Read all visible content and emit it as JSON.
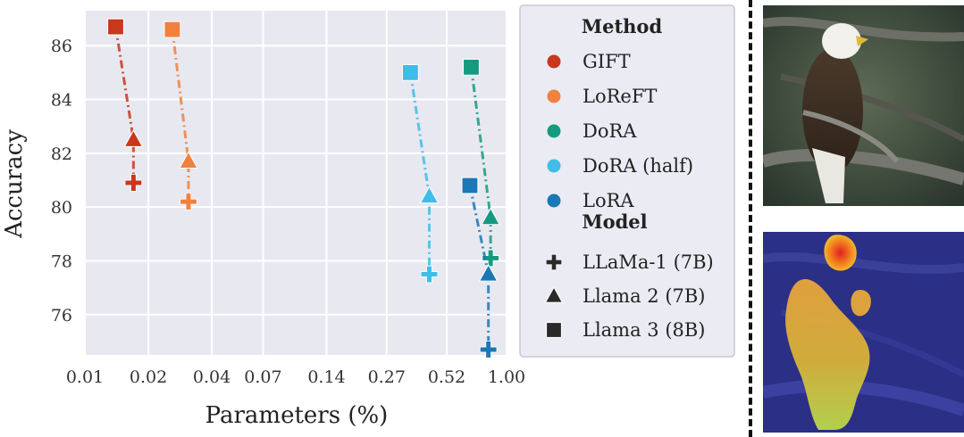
{
  "chart_data": {
    "type": "scatter",
    "xlabel": "Parameters (%)",
    "ylabel": "Accuracy",
    "x_scale": "log",
    "xlim": [
      0.01,
      1.0
    ],
    "ylim": [
      74.5,
      87.3
    ],
    "x_ticks": [
      "0.01",
      "0.02",
      "0.04",
      "0.07",
      "0.14",
      "0.27",
      "0.52",
      "1.00"
    ],
    "y_ticks": [
      "76",
      "78",
      "80",
      "82",
      "84",
      "86"
    ],
    "grid": true,
    "legend_position": "right",
    "legend": {
      "method_title": "Method",
      "model_title": "Model",
      "methods": [
        {
          "name": "GIFT",
          "color": "#c8381c"
        },
        {
          "name": "LoReFT",
          "color": "#f0813e"
        },
        {
          "name": "DoRA",
          "color": "#169a7f"
        },
        {
          "name": "DoRA (half)",
          "color": "#3fbce8"
        },
        {
          "name": "LoRA",
          "color": "#1a78b4"
        }
      ],
      "models": [
        {
          "name": "LLaMa-1 (7B)",
          "marker": "plus"
        },
        {
          "name": "Llama 2 (7B)",
          "marker": "triangle"
        },
        {
          "name": "Llama 3 (8B)",
          "marker": "square"
        }
      ]
    },
    "series": [
      {
        "method": "GIFT",
        "color": "#c8381c",
        "points": [
          {
            "model": "Llama 3 (8B)",
            "x": 0.014,
            "y": 86.7
          },
          {
            "model": "Llama 2 (7B)",
            "x": 0.017,
            "y": 82.5
          },
          {
            "model": "LLaMa-1 (7B)",
            "x": 0.017,
            "y": 80.9
          }
        ]
      },
      {
        "method": "LoReFT",
        "color": "#f0813e",
        "points": [
          {
            "model": "Llama 3 (8B)",
            "x": 0.026,
            "y": 86.6
          },
          {
            "model": "Llama 2 (7B)",
            "x": 0.031,
            "y": 81.7
          },
          {
            "model": "LLaMa-1 (7B)",
            "x": 0.031,
            "y": 80.2
          }
        ]
      },
      {
        "method": "DoRA (half)",
        "color": "#3fbce8",
        "points": [
          {
            "model": "Llama 3 (8B)",
            "x": 0.35,
            "y": 85.0
          },
          {
            "model": "Llama 2 (7B)",
            "x": 0.43,
            "y": 80.4
          },
          {
            "model": "LLaMa-1 (7B)",
            "x": 0.43,
            "y": 77.5
          }
        ]
      },
      {
        "method": "DoRA",
        "color": "#169a7f",
        "points": [
          {
            "model": "Llama 3 (8B)",
            "x": 0.68,
            "y": 85.2
          },
          {
            "model": "Llama 2 (7B)",
            "x": 0.84,
            "y": 79.6
          },
          {
            "model": "LLaMa-1 (7B)",
            "x": 0.84,
            "y": 78.1
          }
        ]
      },
      {
        "method": "LoRA",
        "color": "#1a78b4",
        "points": [
          {
            "model": "Llama 3 (8B)",
            "x": 0.67,
            "y": 80.8
          },
          {
            "model": "Llama 2 (7B)",
            "x": 0.82,
            "y": 77.5
          },
          {
            "model": "LLaMa-1 (7B)",
            "x": 0.82,
            "y": 74.7
          }
        ]
      }
    ]
  },
  "images": {
    "top": "eagle-photo",
    "bottom": "eagle-attention-heatmap"
  }
}
